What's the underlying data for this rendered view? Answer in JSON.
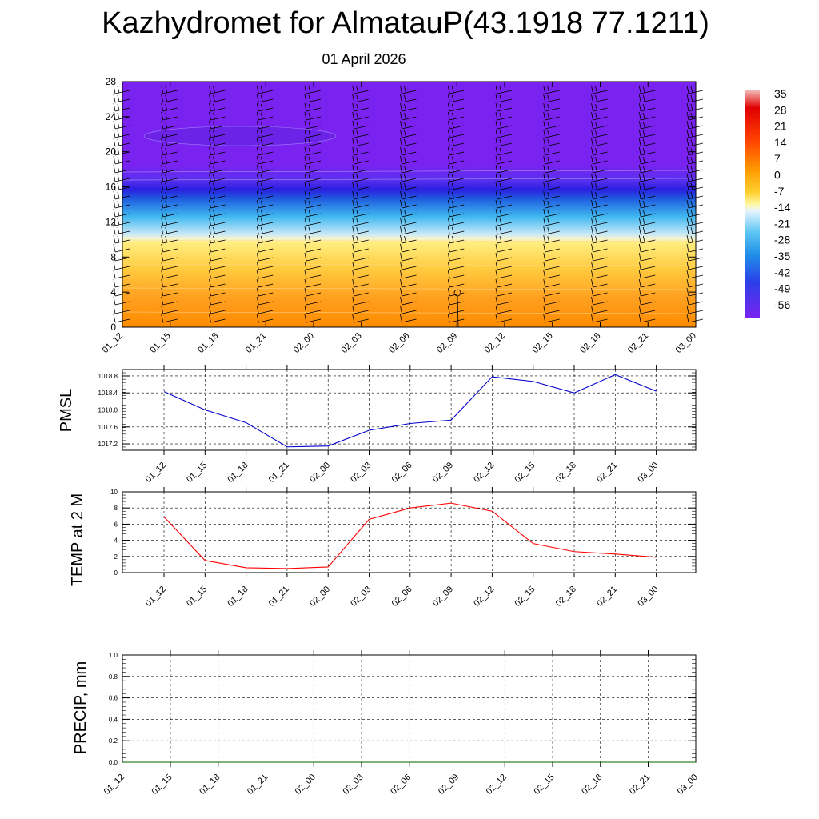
{
  "title": "Kazhydromet for AlmatauP(43.1918 77.1211)",
  "subtitle": "01 April 2026",
  "time_labels": [
    "01_12",
    "01_15",
    "01_18",
    "01_21",
    "02_00",
    "02_03",
    "02_06",
    "02_09",
    "02_12",
    "02_15",
    "02_18",
    "02_21",
    "03_00"
  ],
  "chart_data": [
    {
      "type": "heatmap",
      "y_ticks": [
        0,
        4,
        8,
        12,
        16,
        20,
        24,
        28
      ],
      "ylim": [
        0,
        28
      ],
      "colorbar_labels": [
        "35",
        "28",
        "21",
        "14",
        "7",
        "0",
        "-7",
        "-14",
        "-21",
        "-28",
        "-35",
        "-42",
        "-49",
        "-56"
      ],
      "colors": {
        "cold": "#7a22f0",
        "mid_blue": "#2a30e8",
        "light_blue": "#c8e8f8",
        "yellow": "#ffe860",
        "orange": "#ff8800",
        "red": "#e00000"
      },
      "grid": false
    },
    {
      "type": "line",
      "ylabel": "PMSL",
      "y_ticks": [
        "1017.2",
        "1017.6",
        "1018.0",
        "1018.4",
        "1018.8"
      ],
      "ylim": [
        1017.05,
        1018.95
      ],
      "categories": [
        "01_12",
        "01_15",
        "01_18",
        "01_21",
        "02_00",
        "02_03",
        "02_06",
        "02_09",
        "02_12",
        "02_15",
        "02_18",
        "02_21",
        "03_00"
      ],
      "values": [
        1018.43,
        1018.0,
        1017.7,
        1017.13,
        1017.15,
        1017.52,
        1017.68,
        1017.76,
        1018.78,
        1018.67,
        1018.4,
        1018.83,
        1018.44
      ],
      "color": "#0000cc",
      "grid": true
    },
    {
      "type": "line",
      "ylabel": "TEMP at 2 M",
      "y_ticks": [
        "0",
        "2",
        "4",
        "6",
        "8",
        "10"
      ],
      "ylim": [
        0,
        10
      ],
      "categories": [
        "01_12",
        "01_15",
        "01_18",
        "01_21",
        "02_00",
        "02_03",
        "02_06",
        "02_09",
        "02_12",
        "02_15",
        "02_18",
        "02_21",
        "03_00"
      ],
      "values": [
        6.9,
        1.5,
        0.6,
        0.5,
        0.7,
        6.6,
        8.0,
        8.6,
        7.6,
        3.6,
        2.6,
        2.3,
        1.9
      ],
      "color": "#ff0000",
      "grid": true
    },
    {
      "type": "line",
      "ylabel": "PRECIP, mm",
      "y_ticks": [
        "0.0",
        "0.2",
        "0.4",
        "0.6",
        "0.8",
        "1.0"
      ],
      "ylim": [
        0,
        1
      ],
      "categories": [
        "01_12",
        "01_15",
        "01_18",
        "01_21",
        "02_00",
        "02_03",
        "02_06",
        "02_09",
        "02_12",
        "02_15",
        "02_18",
        "02_21",
        "03_00"
      ],
      "values": [
        0,
        0,
        0,
        0,
        0,
        0,
        0,
        0,
        0,
        0,
        0,
        0,
        0
      ],
      "color": "#006600",
      "grid": true
    }
  ]
}
